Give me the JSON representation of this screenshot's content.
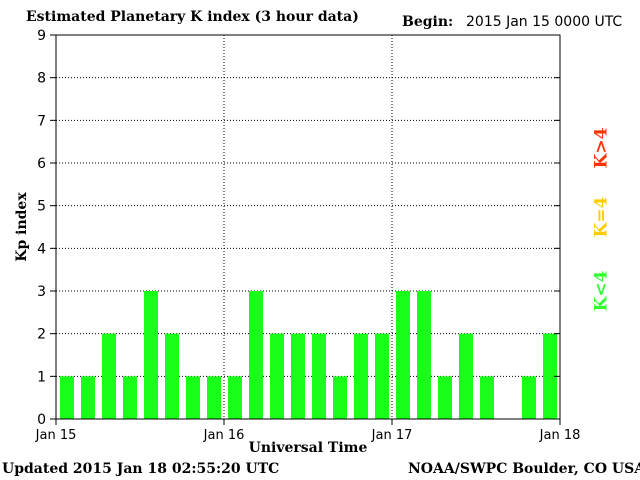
{
  "header": {
    "title": "Estimated Planetary K index (3 hour data)",
    "begin_label": "Begin:",
    "begin_value": "2015 Jan 15 0000 UTC"
  },
  "footer": {
    "updated": "Updated 2015 Jan 18 02:55:20 UTC",
    "credit": "NOAA/SWPC Boulder, CO USA"
  },
  "legend": {
    "above": "K>4",
    "equal": "K=4",
    "below": "K<4"
  },
  "colors": {
    "bar": "#1aff1a",
    "above": "#ff3300",
    "equal": "#ffcc00",
    "below": "#33ff33"
  },
  "chart_data": {
    "type": "bar",
    "title": "Estimated Planetary K index (3 hour data)",
    "xlabel": "Universal Time",
    "ylabel": "Kp index",
    "ylim": [
      0,
      9
    ],
    "yticks": [
      0,
      1,
      2,
      3,
      4,
      5,
      6,
      7,
      8,
      9
    ],
    "xtick_labels": [
      "Jan 15",
      "Jan 16",
      "Jan 17",
      "Jan 18"
    ],
    "interval_hours": 3,
    "values": [
      1,
      1,
      2,
      1,
      3,
      2,
      1,
      1,
      1,
      3,
      2,
      2,
      2,
      1,
      2,
      2,
      3,
      3,
      1,
      2,
      1,
      null,
      1,
      2
    ],
    "grid": "dotted, both axes",
    "legend_position": "right, vertical"
  }
}
